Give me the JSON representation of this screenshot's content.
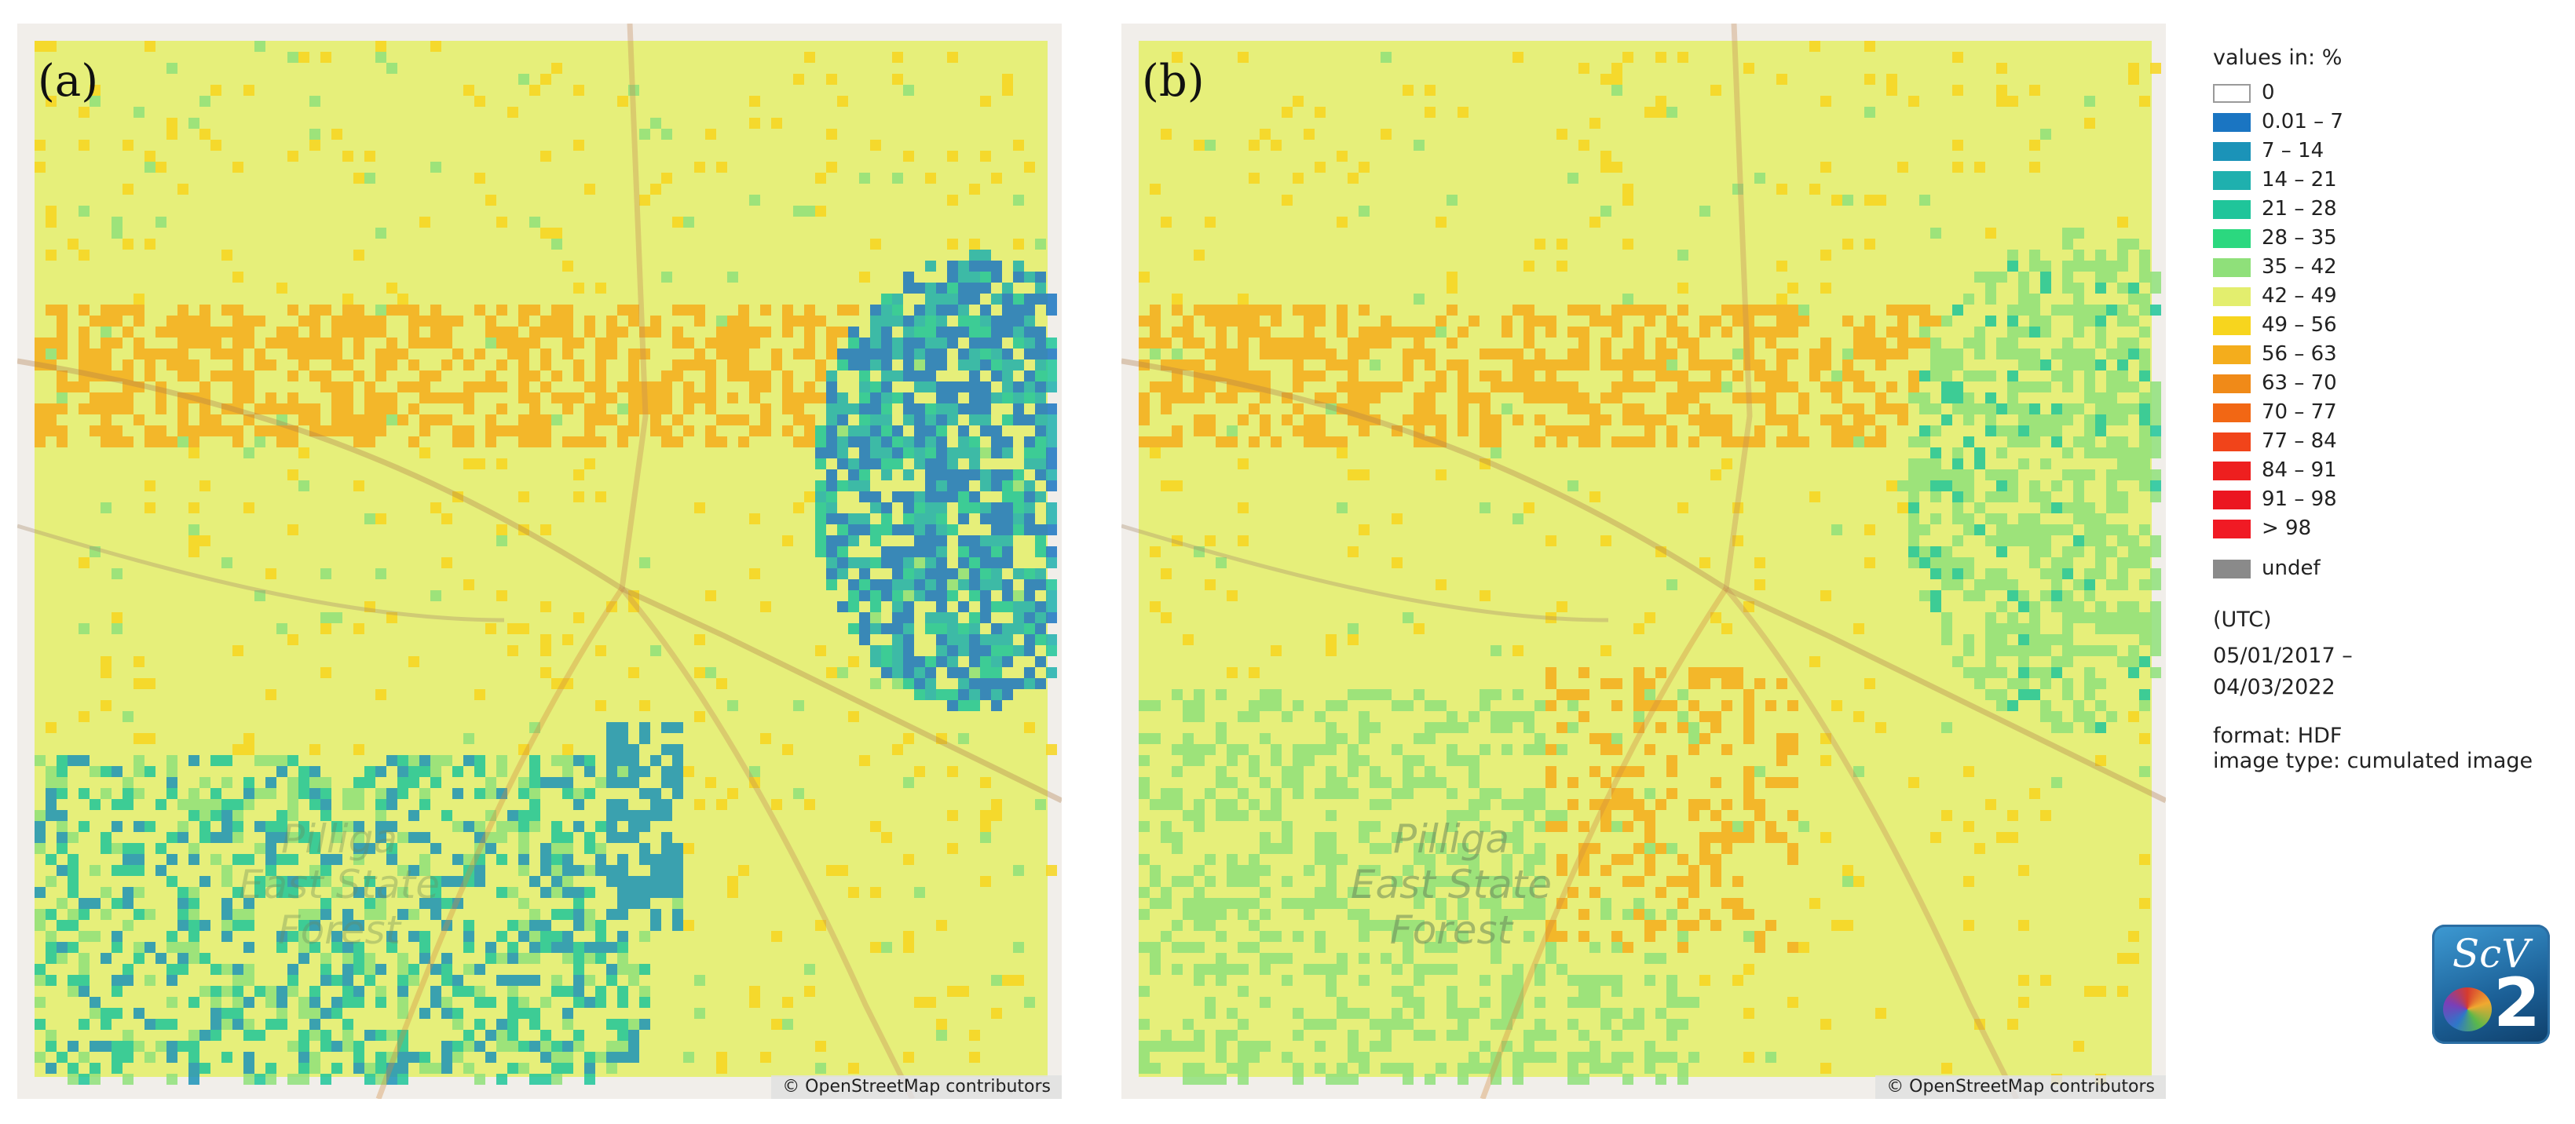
{
  "panels": [
    {
      "label": "(a)",
      "attribution": "© OpenStreetMap contributors",
      "forest_label": "Pilliga\nEast State\nForest",
      "variant": "a"
    },
    {
      "label": "(b)",
      "attribution": "© OpenStreetMap contributors",
      "forest_label": "Pilliga\nEast State\nForest",
      "variant": "b"
    }
  ],
  "legend": {
    "title": "values in: %",
    "classes": [
      {
        "label": "0",
        "color": "#ffffff"
      },
      {
        "label": "0.01 – 7",
        "color": "#1a75c2"
      },
      {
        "label": "7 – 14",
        "color": "#1b93b8"
      },
      {
        "label": "14 – 21",
        "color": "#1fb0ae"
      },
      {
        "label": "21 – 28",
        "color": "#1fc59a"
      },
      {
        "label": "28 – 35",
        "color": "#2bd87f"
      },
      {
        "label": "35 – 42",
        "color": "#8fe07a"
      },
      {
        "label": "42 – 49",
        "color": "#e3ee6e"
      },
      {
        "label": "49 – 56",
        "color": "#f7d51e"
      },
      {
        "label": "56 – 63",
        "color": "#f4ad1c"
      },
      {
        "label": "63 – 70",
        "color": "#f08a18"
      },
      {
        "label": "70 – 77",
        "color": "#f26714"
      },
      {
        "label": "77 – 84",
        "color": "#f1441a"
      },
      {
        "label": "84 – 91",
        "color": "#ee1f1f"
      },
      {
        "label": "91 – 98",
        "color": "#eb1620"
      },
      {
        "label": "> 98",
        "color": "#f01a24"
      }
    ],
    "undef": {
      "label": "undef",
      "color": "#8a8a8a"
    },
    "time_zone": "(UTC)",
    "date_start": "05/01/2017 –",
    "date_end": "04/03/2022",
    "format": "format: HDF",
    "image_type": "image type: cumulated image"
  },
  "logo": {
    "top_text": "ScV",
    "big_text": "2"
  }
}
